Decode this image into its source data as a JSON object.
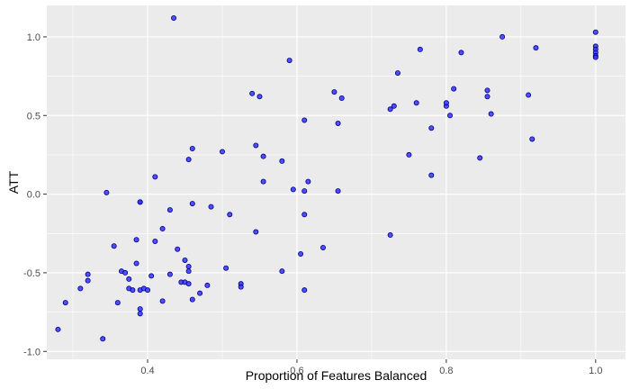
{
  "chart_data": {
    "type": "scatter",
    "xlabel": "Proportion of Features Balanced",
    "ylabel": "ATT",
    "xlim": [
      0.265,
      1.04
    ],
    "ylim": [
      -1.05,
      1.2
    ],
    "x_ticks": [
      0.4,
      0.6,
      0.8,
      1.0
    ],
    "x_tick_labels": [
      "0.4",
      "0.6",
      "0.8",
      "1.0"
    ],
    "y_ticks": [
      -1.0,
      -0.5,
      0.0,
      0.5,
      1.0
    ],
    "y_tick_labels": [
      "-1.0",
      "-0.5",
      "0.0",
      "0.5",
      "1.0"
    ],
    "grid": true,
    "colors": {
      "panel": "#ebebeb",
      "grid": "#ffffff",
      "point_fill": "#3333ff",
      "point_stroke": "#00008b"
    },
    "points": [
      {
        "x": 0.28,
        "y": -0.86
      },
      {
        "x": 0.29,
        "y": -0.69
      },
      {
        "x": 0.31,
        "y": -0.6
      },
      {
        "x": 0.32,
        "y": -0.55
      },
      {
        "x": 0.32,
        "y": -0.51
      },
      {
        "x": 0.34,
        "y": -0.92
      },
      {
        "x": 0.345,
        "y": 0.01
      },
      {
        "x": 0.355,
        "y": -0.33
      },
      {
        "x": 0.36,
        "y": -0.69
      },
      {
        "x": 0.365,
        "y": -0.49
      },
      {
        "x": 0.37,
        "y": -0.5
      },
      {
        "x": 0.375,
        "y": -0.54
      },
      {
        "x": 0.375,
        "y": -0.6
      },
      {
        "x": 0.38,
        "y": -0.61
      },
      {
        "x": 0.385,
        "y": -0.44
      },
      {
        "x": 0.385,
        "y": -0.29
      },
      {
        "x": 0.39,
        "y": -0.61
      },
      {
        "x": 0.39,
        "y": -0.73
      },
      {
        "x": 0.39,
        "y": -0.05
      },
      {
        "x": 0.39,
        "y": -0.05
      },
      {
        "x": 0.395,
        "y": -0.6
      },
      {
        "x": 0.39,
        "y": -0.76
      },
      {
        "x": 0.4,
        "y": -0.61
      },
      {
        "x": 0.405,
        "y": -0.52
      },
      {
        "x": 0.41,
        "y": -0.3
      },
      {
        "x": 0.41,
        "y": 0.11
      },
      {
        "x": 0.42,
        "y": -0.22
      },
      {
        "x": 0.42,
        "y": -0.68
      },
      {
        "x": 0.43,
        "y": -0.1
      },
      {
        "x": 0.43,
        "y": -0.51
      },
      {
        "x": 0.435,
        "y": 1.12
      },
      {
        "x": 0.44,
        "y": -0.35
      },
      {
        "x": 0.445,
        "y": -0.56
      },
      {
        "x": 0.45,
        "y": -0.42
      },
      {
        "x": 0.45,
        "y": -0.56
      },
      {
        "x": 0.455,
        "y": -0.46
      },
      {
        "x": 0.455,
        "y": -0.49
      },
      {
        "x": 0.455,
        "y": -0.57
      },
      {
        "x": 0.455,
        "y": 0.22
      },
      {
        "x": 0.46,
        "y": 0.29
      },
      {
        "x": 0.46,
        "y": -0.06
      },
      {
        "x": 0.46,
        "y": -0.67
      },
      {
        "x": 0.47,
        "y": -0.63
      },
      {
        "x": 0.48,
        "y": -0.58
      },
      {
        "x": 0.485,
        "y": -0.08
      },
      {
        "x": 0.5,
        "y": 0.27
      },
      {
        "x": 0.505,
        "y": -0.47
      },
      {
        "x": 0.51,
        "y": -0.13
      },
      {
        "x": 0.525,
        "y": -0.57
      },
      {
        "x": 0.525,
        "y": -0.59
      },
      {
        "x": 0.54,
        "y": 0.64
      },
      {
        "x": 0.545,
        "y": 0.31
      },
      {
        "x": 0.545,
        "y": -0.24
      },
      {
        "x": 0.55,
        "y": 0.62
      },
      {
        "x": 0.555,
        "y": 0.08
      },
      {
        "x": 0.555,
        "y": 0.24
      },
      {
        "x": 0.58,
        "y": 0.21
      },
      {
        "x": 0.58,
        "y": -0.49
      },
      {
        "x": 0.59,
        "y": 0.85
      },
      {
        "x": 0.595,
        "y": 0.03
      },
      {
        "x": 0.605,
        "y": -0.38
      },
      {
        "x": 0.61,
        "y": 0.02
      },
      {
        "x": 0.61,
        "y": 0.47
      },
      {
        "x": 0.61,
        "y": -0.13
      },
      {
        "x": 0.61,
        "y": -0.61
      },
      {
        "x": 0.615,
        "y": 0.08
      },
      {
        "x": 0.635,
        "y": -0.34
      },
      {
        "x": 0.65,
        "y": 0.65
      },
      {
        "x": 0.655,
        "y": 0.45
      },
      {
        "x": 0.655,
        "y": 0.02
      },
      {
        "x": 0.66,
        "y": 0.61
      },
      {
        "x": 0.725,
        "y": -0.26
      },
      {
        "x": 0.725,
        "y": 0.54
      },
      {
        "x": 0.73,
        "y": 0.56
      },
      {
        "x": 0.735,
        "y": 0.77
      },
      {
        "x": 0.75,
        "y": 0.25
      },
      {
        "x": 0.76,
        "y": 0.58
      },
      {
        "x": 0.765,
        "y": 0.92
      },
      {
        "x": 0.78,
        "y": 0.12
      },
      {
        "x": 0.78,
        "y": 0.42
      },
      {
        "x": 0.8,
        "y": 0.56
      },
      {
        "x": 0.8,
        "y": 0.58
      },
      {
        "x": 0.805,
        "y": 0.5
      },
      {
        "x": 0.81,
        "y": 0.67
      },
      {
        "x": 0.82,
        "y": 0.9
      },
      {
        "x": 0.845,
        "y": 0.23
      },
      {
        "x": 0.855,
        "y": 0.66
      },
      {
        "x": 0.855,
        "y": 0.62
      },
      {
        "x": 0.86,
        "y": 0.51
      },
      {
        "x": 0.875,
        "y": 1.0
      },
      {
        "x": 0.91,
        "y": 0.63
      },
      {
        "x": 0.915,
        "y": 0.35
      },
      {
        "x": 0.92,
        "y": 0.93
      },
      {
        "x": 1.0,
        "y": 1.03
      },
      {
        "x": 1.0,
        "y": 0.94
      },
      {
        "x": 1.0,
        "y": 0.92
      },
      {
        "x": 1.0,
        "y": 0.9
      },
      {
        "x": 1.0,
        "y": 0.88
      },
      {
        "x": 1.0,
        "y": 0.87
      }
    ]
  }
}
